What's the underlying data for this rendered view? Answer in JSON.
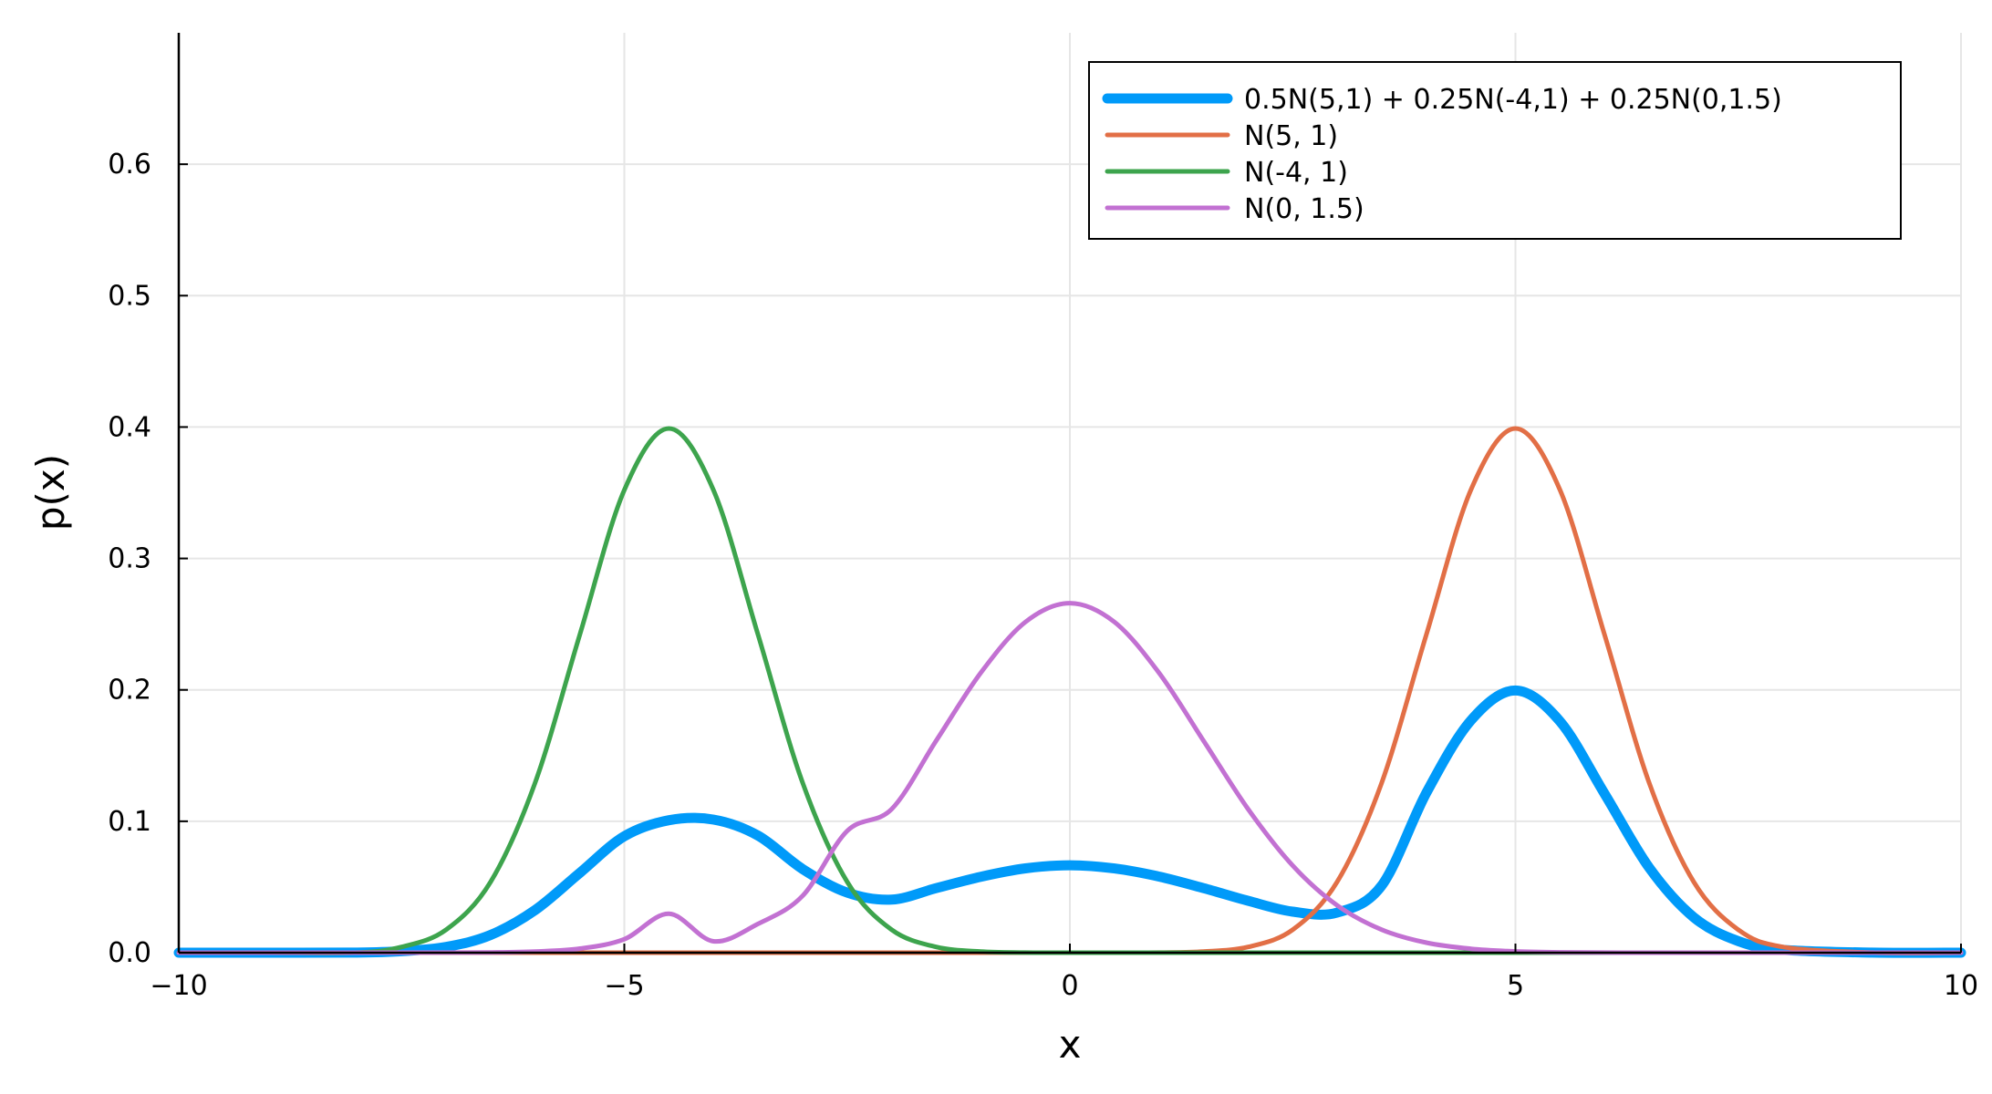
{
  "chart_data": {
    "type": "line",
    "xlabel": "x",
    "ylabel": "p(x)",
    "xlim": [
      -10,
      10
    ],
    "ylim": [
      0,
      0.7
    ],
    "x_ticks": [
      -10,
      -5,
      0,
      5,
      10
    ],
    "x_tick_labels": [
      "−10",
      "−5",
      "0",
      "5",
      "10"
    ],
    "y_ticks": [
      0.0,
      0.1,
      0.2,
      0.3,
      0.4,
      0.5,
      0.6
    ],
    "y_tick_labels": [
      "0.0",
      "0.1",
      "0.2",
      "0.3",
      "0.4",
      "0.5",
      "0.6"
    ],
    "grid": true,
    "legend_position": "top-right",
    "x": [
      -10,
      -9,
      -8,
      -7.5,
      -7,
      -6.5,
      -6,
      -5.5,
      -5,
      -4.5,
      -4,
      -3.5,
      -3,
      -2.5,
      -2,
      -1.5,
      -1,
      -0.5,
      0,
      0.5,
      1,
      1.5,
      2,
      2.5,
      3,
      3.5,
      4,
      4.5,
      5,
      5.5,
      6,
      6.5,
      7,
      7.5,
      8,
      9,
      10
    ],
    "series": [
      {
        "name": "0.5N(5,1) + 0.25N(-4,1) + 0.25N(0,1.5)",
        "color": "#009af9",
        "style": "thick",
        "values": [
          0.0,
          0.0,
          0.0001,
          0.0011,
          0.0044,
          0.0135,
          0.0325,
          0.0607,
          0.0886,
          0.1008,
          0.1013,
          0.0891,
          0.0637,
          0.0457,
          0.0404,
          0.0491,
          0.0578,
          0.0642,
          0.0665,
          0.0641,
          0.0579,
          0.0491,
          0.0395,
          0.0312,
          0.0305,
          0.0512,
          0.1216,
          0.1767,
          0.1995,
          0.176,
          0.121,
          0.0648,
          0.027,
          0.0088,
          0.0022,
          0.0001,
          0.0
        ]
      },
      {
        "name": "N(5, 1)",
        "color": "#e26f46",
        "style": "normal",
        "values": [
          0.0,
          0.0,
          0.0,
          0.0,
          0.0,
          0.0,
          0.0,
          0.0,
          0.0,
          0.0,
          0.0,
          0.0,
          0.0,
          0.0,
          0.0,
          0.0,
          0.0,
          0.0,
          0.0,
          0.0,
          0.0001,
          0.0009,
          0.0044,
          0.0175,
          0.054,
          0.1295,
          0.242,
          0.3521,
          0.3989,
          0.3521,
          0.242,
          0.1295,
          0.054,
          0.0175,
          0.0044,
          0.0001,
          0.0
        ]
      },
      {
        "name": "N(-4, 1)",
        "color": "#3da44d",
        "style": "normal",
        "values": [
          0.0,
          0.0,
          0.0001,
          0.0044,
          0.0175,
          0.054,
          0.1295,
          0.242,
          0.3521,
          0.3989,
          0.3521,
          0.242,
          0.1295,
          0.054,
          0.0175,
          0.0044,
          0.0009,
          0.0001,
          0.0,
          0.0,
          0.0,
          0.0,
          0.0,
          0.0,
          0.0,
          0.0,
          0.0,
          0.0,
          0.0,
          0.0,
          0.0,
          0.0,
          0.0,
          0.0,
          0.0,
          0.0,
          0.0
        ]
      },
      {
        "name": "N(0, 1.5)",
        "color": "#c271d2",
        "style": "normal",
        "values": [
          0.0,
          0.0,
          0.0,
          0.0,
          0.0001,
          0.0002,
          0.0009,
          0.0031,
          0.0103,
          0.0296,
          0.0087,
          0.0219,
          0.0432,
          0.0926,
          0.1093,
          0.1613,
          0.213,
          0.2516,
          0.266,
          0.2516,
          0.213,
          0.1613,
          0.1093,
          0.0663,
          0.036,
          0.0175,
          0.0076,
          0.003,
          0.001,
          0.0003,
          0.0001,
          0.0,
          0.0,
          0.0,
          0.0,
          0.0,
          0.0
        ]
      }
    ]
  }
}
